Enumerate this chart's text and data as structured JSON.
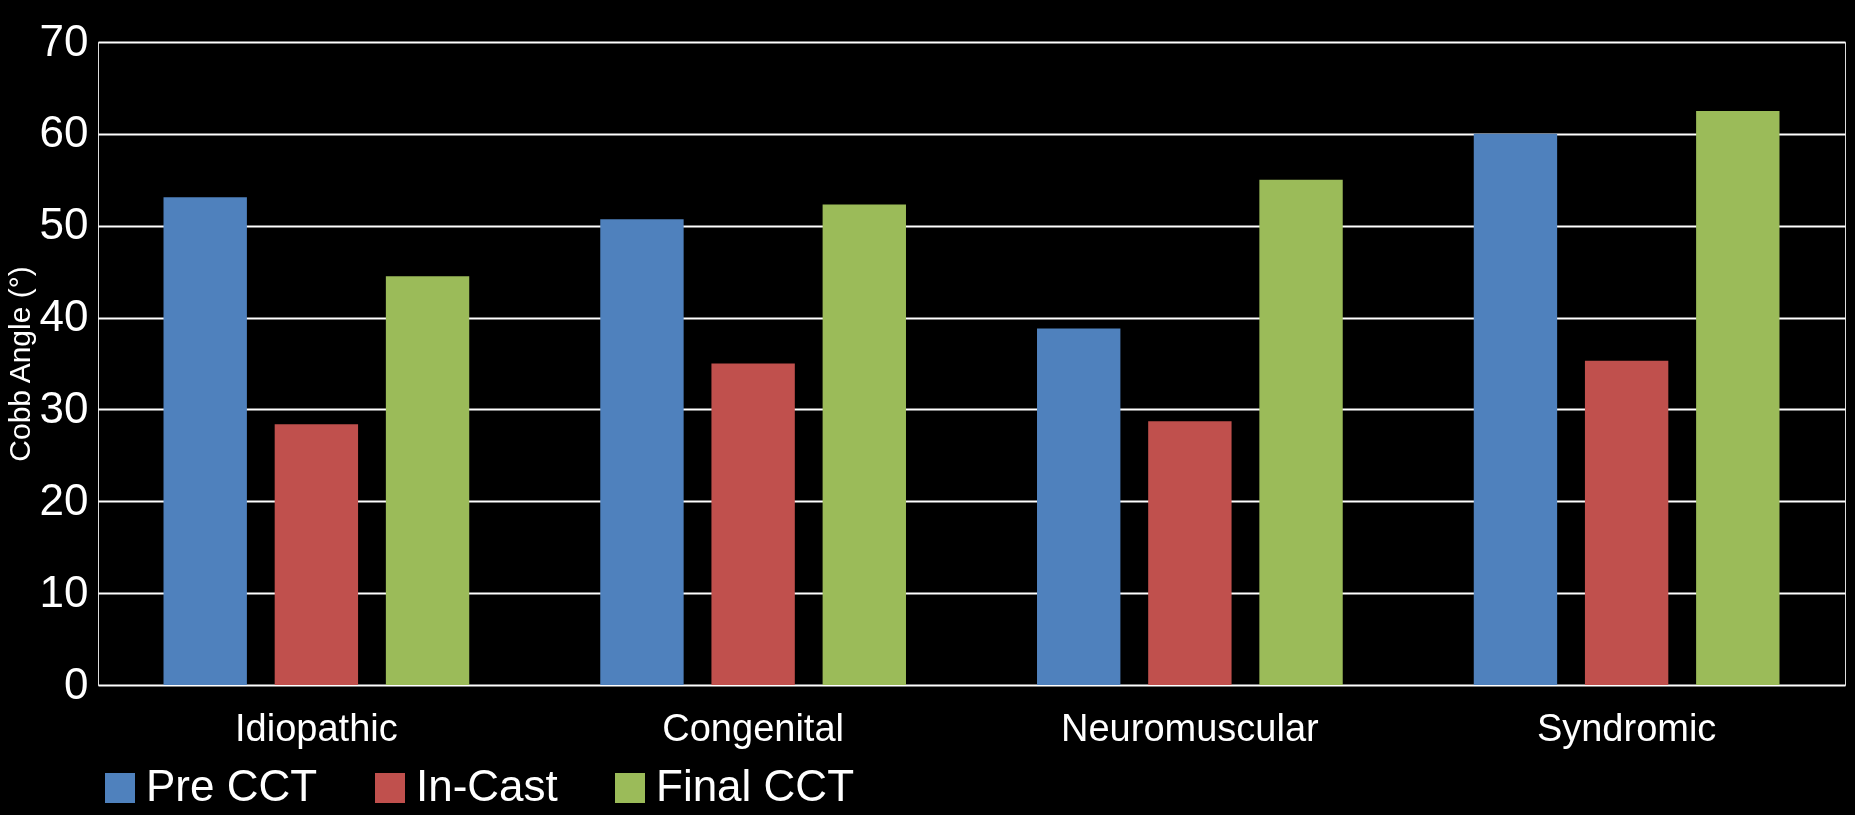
{
  "chart_data": {
    "type": "bar",
    "ylabel": "Cobb Angle (°)",
    "categories": [
      "Idiopathic",
      "Congenital",
      "Neuromuscular",
      "Syndromic"
    ],
    "series": [
      {
        "name": "Pre CCT",
        "color": "#4f81bd",
        "values": [
          53.1,
          50.7,
          38.8,
          60.0
        ]
      },
      {
        "name": "In-Cast",
        "color": "#c0504d",
        "values": [
          28.4,
          35.0,
          28.7,
          35.3
        ]
      },
      {
        "name": "Final CCT",
        "color": "#9bbb59",
        "values": [
          44.5,
          52.3,
          55.0,
          62.5
        ]
      }
    ],
    "ylim": [
      0,
      70
    ],
    "yticks": [
      0,
      10,
      20,
      30,
      40,
      50,
      60,
      70
    ],
    "grid": "y",
    "legend": "bottom"
  }
}
